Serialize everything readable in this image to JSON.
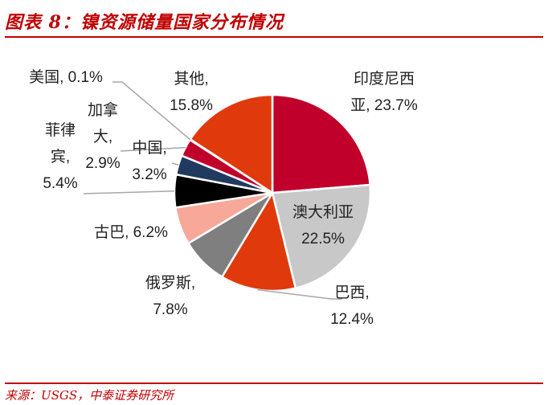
{
  "header": {
    "title": "图表 8：镍资源储量国家分布情况"
  },
  "footer": {
    "source": "来源：USGS，中泰证券研究所"
  },
  "chart_data": {
    "type": "pie",
    "title": "图表 8：镍资源储量国家分布情况",
    "slices": [
      {
        "name": "印度尼西亚",
        "value": 23.7,
        "color": "#c0002b",
        "label_lines": [
          "印度尼西",
          "亚, 23.7%"
        ]
      },
      {
        "name": "澳大利亚",
        "value": 22.5,
        "color": "#c8c8c8",
        "label_lines": [
          "澳大利亚",
          "22.5%"
        ]
      },
      {
        "name": "巴西",
        "value": 12.4,
        "color": "#e03a0c",
        "label_lines": [
          "巴西,",
          "12.4%"
        ]
      },
      {
        "name": "俄罗斯",
        "value": 7.8,
        "color": "#7f7f7f",
        "label_lines": [
          "俄罗斯,",
          "7.8%"
        ]
      },
      {
        "name": "古巴",
        "value": 6.2,
        "color": "#f7a898",
        "label_lines": [
          "古巴, 6.2%"
        ]
      },
      {
        "name": "菲律宾",
        "value": 5.4,
        "color": "#000000",
        "label_lines": [
          "菲律",
          "宾,",
          "5.4%"
        ]
      },
      {
        "name": "中国",
        "value": 3.2,
        "color": "#203a60",
        "label_lines": [
          "中国,",
          "3.2%"
        ]
      },
      {
        "name": "加拿大",
        "value": 2.9,
        "color": "#c0002b",
        "label_lines": [
          "加拿",
          "大,",
          "2.9%"
        ]
      },
      {
        "name": "美国",
        "value": 0.1,
        "color": "#ffffff",
        "label_lines": [
          "美国, 0.1%"
        ]
      },
      {
        "name": "其他",
        "value": 15.8,
        "color": "#e03a0c",
        "label_lines": [
          "其他,",
          "15.8%"
        ]
      }
    ]
  }
}
